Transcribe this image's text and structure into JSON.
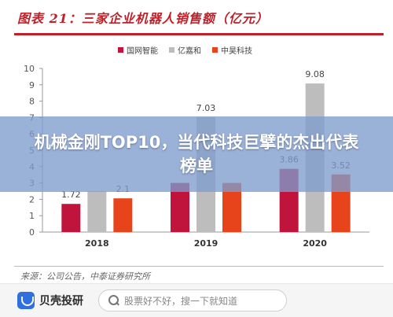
{
  "figure": {
    "title": "图表 21：三家企业机器人销售额（亿元）",
    "source": "来源：公司公告，中泰证券研究所"
  },
  "overlay": {
    "title": "机械金刚TOP10，当代科技巨擘的杰出代表榜单"
  },
  "bottom_bar": {
    "brand": "贝壳投研",
    "search_placeholder": "股票好不好，搜一下就知道",
    "brand_color": "#2f6fe0"
  },
  "chart_data": {
    "type": "bar",
    "categories": [
      "2018",
      "2019",
      "2020"
    ],
    "series": [
      {
        "name": "国网智能",
        "color": "#c0143c",
        "values": [
          1.72,
          3.0,
          3.86
        ]
      },
      {
        "name": "亿嘉和",
        "color": "#bdbdbd",
        "values": [
          2.5,
          7.03,
          9.08
        ]
      },
      {
        "name": "中昊科技",
        "color": "#e8441c",
        "values": [
          2.06,
          3.0,
          3.52
        ]
      }
    ],
    "data_labels": [
      {
        "series": 0,
        "category": 0,
        "text": "1.72"
      },
      {
        "series": 2,
        "category": 0,
        "text": "2.1"
      },
      {
        "series": 1,
        "category": 1,
        "text": "7.03"
      },
      {
        "series": 0,
        "category": 2,
        "text": "3.86"
      },
      {
        "series": 1,
        "category": 2,
        "text": "9.08"
      },
      {
        "series": 2,
        "category": 2,
        "text": "3.52"
      }
    ],
    "y_ticks": [
      0,
      1,
      2,
      3,
      4,
      5,
      6,
      7,
      8,
      9,
      10
    ],
    "ylim": [
      0,
      10
    ],
    "xlabel": "",
    "ylabel": "",
    "grid": false,
    "legend_position": "top"
  }
}
